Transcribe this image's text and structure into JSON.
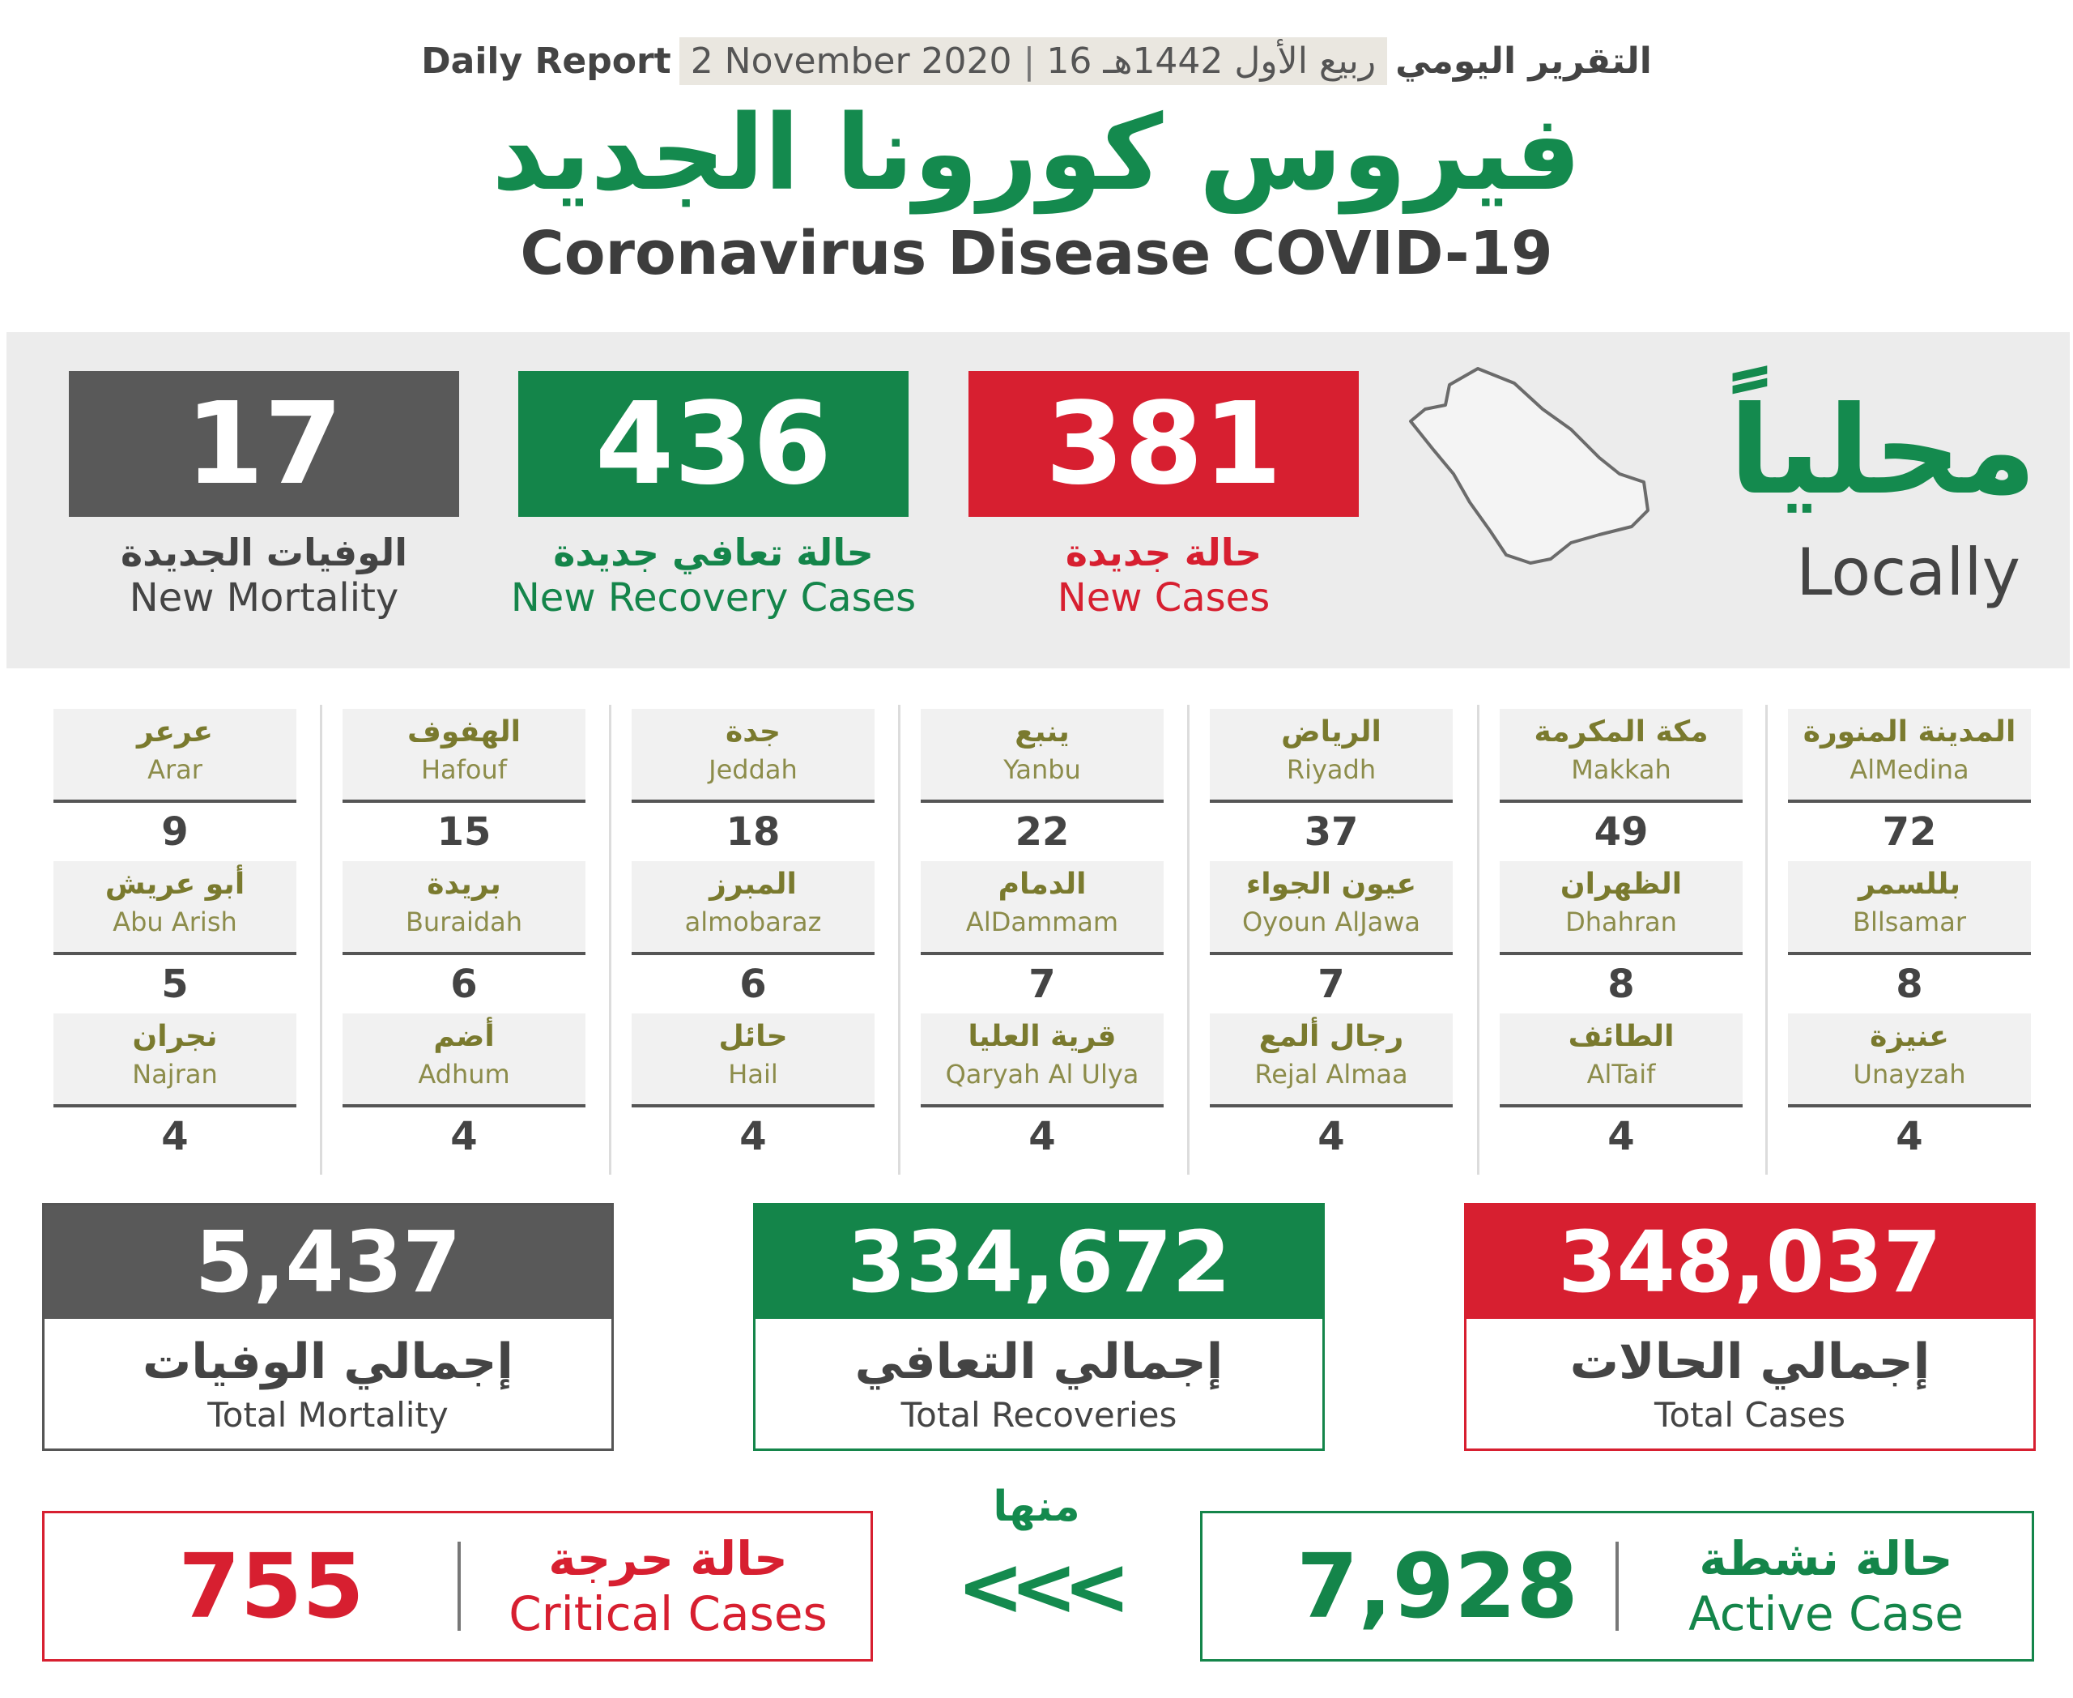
{
  "header": {
    "daily_ar": "التقرير اليومي",
    "hijri": "16 ربيع الأول 1442هـ",
    "gregorian": "2 November 2020",
    "daily_en": "Daily Report",
    "title_ar": "فيروس كورونا الجديد",
    "title_en": "Coronavirus Disease COVID-19"
  },
  "colors": {
    "red": "#d71f30",
    "green": "#14854a",
    "gray": "#595959"
  },
  "locally": {
    "label_ar": "محلياً",
    "label_en": "Locally",
    "map_icon": "saudi-map-icon",
    "new_cases": {
      "value": "381",
      "ar": "حالة جديدة",
      "en": "New Cases"
    },
    "new_recovery": {
      "value": "436",
      "ar": "حالة تعافي جديدة",
      "en": "New Recovery Cases"
    },
    "new_mortality": {
      "value": "17",
      "ar": "الوفيات الجديدة",
      "en": "New Mortality"
    }
  },
  "cities": [
    [
      {
        "ar": "المدينة المنورة",
        "en": "AlMedina",
        "count": "72"
      },
      {
        "ar": "بللسمر",
        "en": "Bllsamar",
        "count": "8"
      },
      {
        "ar": "عنيزة",
        "en": "Unayzah",
        "count": "4"
      }
    ],
    [
      {
        "ar": "مكة المكرمة",
        "en": "Makkah",
        "count": "49"
      },
      {
        "ar": "الظهران",
        "en": "Dhahran",
        "count": "8"
      },
      {
        "ar": "الطائف",
        "en": "AlTaif",
        "count": "4"
      }
    ],
    [
      {
        "ar": "الرياض",
        "en": "Riyadh",
        "count": "37"
      },
      {
        "ar": "عيون الجواء",
        "en": "Oyoun AlJawa",
        "count": "7"
      },
      {
        "ar": "رجال ألمع",
        "en": "Rejal Almaa",
        "count": "4"
      }
    ],
    [
      {
        "ar": "ينبع",
        "en": "Yanbu",
        "count": "22"
      },
      {
        "ar": "الدمام",
        "en": "AlDammam",
        "count": "7"
      },
      {
        "ar": "قرية العليا",
        "en": "Qaryah Al Ulya",
        "count": "4"
      }
    ],
    [
      {
        "ar": "جدة",
        "en": "Jeddah",
        "count": "18"
      },
      {
        "ar": "المبرز",
        "en": "almobaraz",
        "count": "6"
      },
      {
        "ar": "حائل",
        "en": "Hail",
        "count": "4"
      }
    ],
    [
      {
        "ar": "الهفوف",
        "en": "Hafouf",
        "count": "15"
      },
      {
        "ar": "بريدة",
        "en": "Buraidah",
        "count": "6"
      },
      {
        "ar": "أضم",
        "en": "Adhum",
        "count": "4"
      }
    ],
    [
      {
        "ar": "عرعر",
        "en": "Arar",
        "count": "9"
      },
      {
        "ar": "أبو عريش",
        "en": "Abu Arish",
        "count": "5"
      },
      {
        "ar": "نجران",
        "en": "Najran",
        "count": "4"
      }
    ]
  ],
  "totals": {
    "cases": {
      "value": "348,037",
      "ar": "إجمالي الحالات",
      "en": "Total Cases"
    },
    "recoveries": {
      "value": "334,672",
      "ar": "إجمالي التعافي",
      "en": "Total Recoveries"
    },
    "mortality": {
      "value": "5,437",
      "ar": "إجمالي الوفيات",
      "en": "Total Mortality"
    }
  },
  "bottom": {
    "active": {
      "value": "7,928",
      "ar": "حالة نشطة",
      "en": "Active Case"
    },
    "of_which": "منها",
    "arrows": "<<<",
    "critical": {
      "value": "755",
      "ar": "حالة حرجة",
      "en": "Critical Cases"
    }
  }
}
